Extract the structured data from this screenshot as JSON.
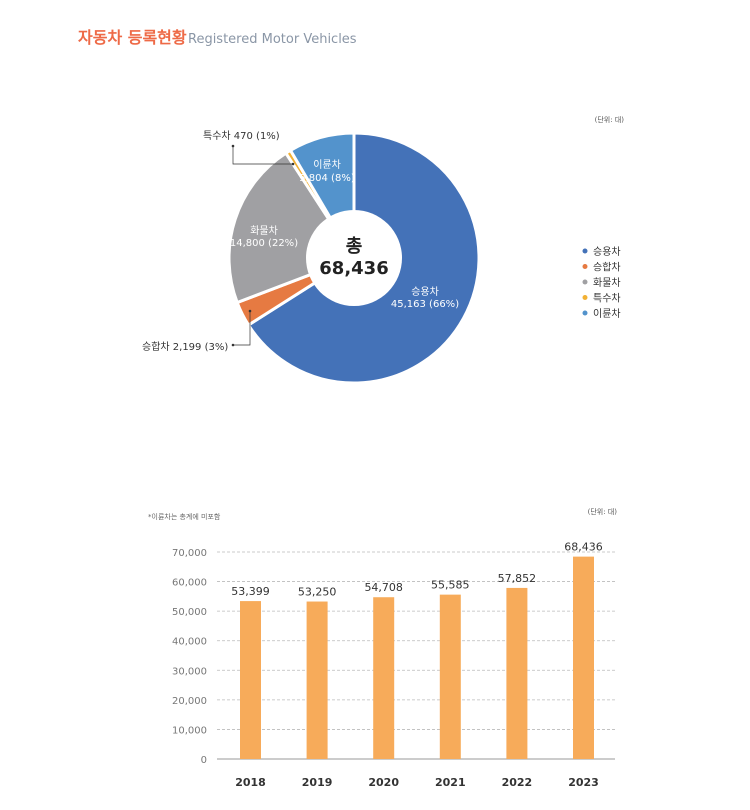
{
  "header": {
    "title_ko": "자동차 등록현황",
    "title_en": "Registered Motor Vehicles",
    "title_color": "#EE6A47"
  },
  "chart_data": [
    {
      "type": "pie",
      "variant": "donut",
      "unit_note": "(단위: 대)",
      "center_label": "총",
      "center_value": "68,436",
      "legend_position": "right",
      "slices": [
        {
          "name": "승용차",
          "value": 45163,
          "pct": "66%",
          "label": "45,163 (66%)",
          "color": "#4472B8",
          "label_position": "inside"
        },
        {
          "name": "승합차",
          "value": 2199,
          "pct": "3%",
          "label": "승합차 2,199 (3%)",
          "color": "#E67A42",
          "label_position": "outside"
        },
        {
          "name": "화물차",
          "value": 14800,
          "pct": "22%",
          "label": "14,800 (22%)",
          "color": "#A0A0A3",
          "label_position": "inside"
        },
        {
          "name": "특수차",
          "value": 470,
          "pct": "1%",
          "label": "특수차 470 (1%)",
          "color": "#F2B134",
          "label_position": "outside"
        },
        {
          "name": "이륜차",
          "value": 5804,
          "pct": "8%",
          "label": "5,804  (8%)",
          "color": "#5393CC",
          "label_position": "inside"
        }
      ],
      "legend": [
        "승용차",
        "승합차",
        "화물차",
        "특수차",
        "이륜차"
      ]
    },
    {
      "type": "bar",
      "note": "*이륜차는 총계에 미포함",
      "unit_note": "(단위: 대)",
      "categories": [
        "2018",
        "2019",
        "2020",
        "2021",
        "2022",
        "2023"
      ],
      "values": [
        53399,
        53250,
        54708,
        55585,
        57852,
        68436
      ],
      "value_labels": [
        "53,399",
        "53,250",
        "54,708",
        "55,585",
        "57,852",
        "68,436"
      ],
      "ylim": [
        0,
        70000
      ],
      "yticks": [
        "0",
        "10,000",
        "20,000",
        "30,000",
        "40,000",
        "50,000",
        "60,000",
        "70,000"
      ],
      "grid": true,
      "bar_color": "#F7AB5A"
    }
  ]
}
